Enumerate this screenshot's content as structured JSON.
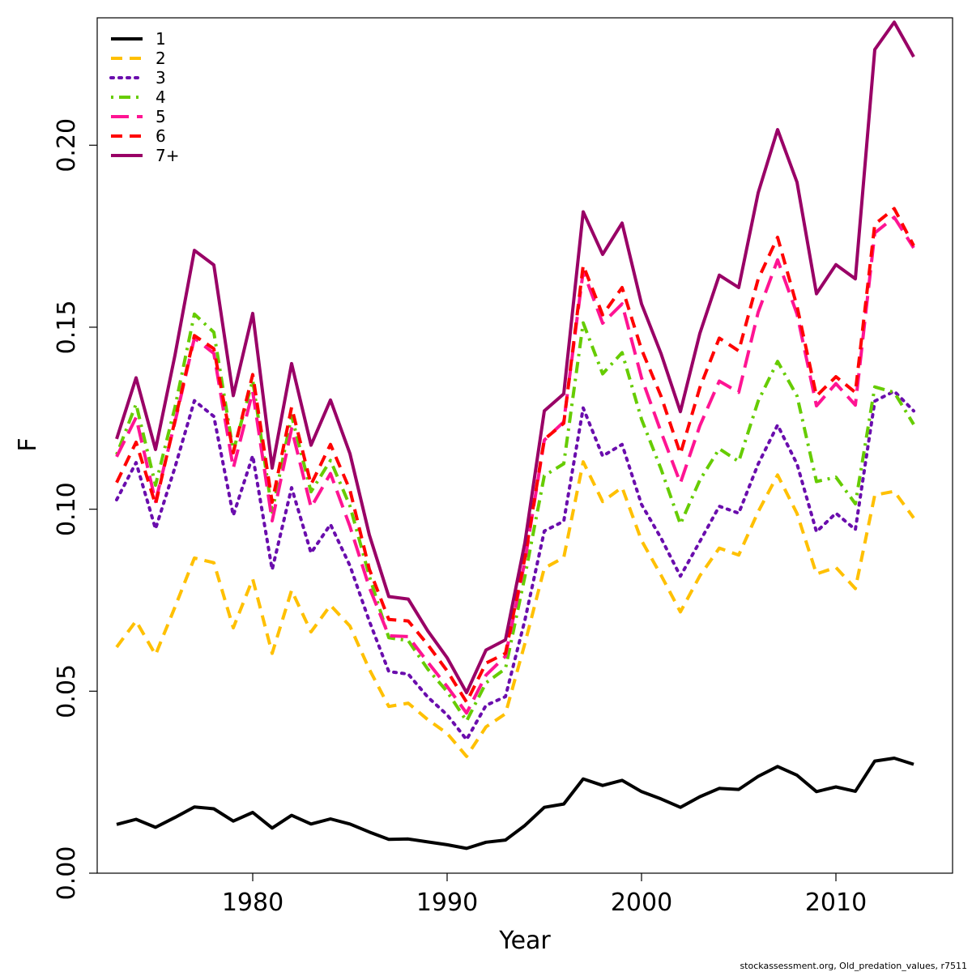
{
  "chart_data": {
    "type": "line",
    "xlabel": "Year",
    "ylabel": "F",
    "xlim": [
      1972,
      2016
    ],
    "ylim": [
      0.0,
      0.235
    ],
    "x_ticks": [
      1980,
      1990,
      2000,
      2010
    ],
    "y_ticks": [
      "0.00",
      "0.05",
      "0.10",
      "0.15",
      "0.20"
    ],
    "legend_position": "top-left",
    "grid": false,
    "footer": "stockassessment.org, Old_predation_values, r7511",
    "x": [
      1973,
      1974,
      1975,
      1976,
      1977,
      1978,
      1979,
      1980,
      1981,
      1982,
      1983,
      1984,
      1985,
      1986,
      1987,
      1988,
      1989,
      1990,
      1991,
      1992,
      1993,
      1994,
      1995,
      1996,
      1997,
      1998,
      1999,
      2000,
      2001,
      2002,
      2003,
      2004,
      2005,
      2006,
      2007,
      2008,
      2009,
      2010,
      2011,
      2012,
      2013,
      2014
    ],
    "series": [
      {
        "name": "1",
        "color": "#000000",
        "dash": "solid",
        "values": [
          0.0134,
          0.0148,
          0.0126,
          0.0153,
          0.0182,
          0.0177,
          0.0143,
          0.0167,
          0.0124,
          0.0159,
          0.0135,
          0.0149,
          0.0135,
          0.0113,
          0.0093,
          0.0094,
          0.0086,
          0.0078,
          0.0068,
          0.0085,
          0.0091,
          0.0131,
          0.0181,
          0.019,
          0.0259,
          0.0241,
          0.0255,
          0.0224,
          0.0204,
          0.0181,
          0.021,
          0.0233,
          0.023,
          0.0266,
          0.0293,
          0.0269,
          0.0224,
          0.0237,
          0.0225,
          0.0308,
          0.0316,
          0.0299
        ]
      },
      {
        "name": "2",
        "color": "#FFC000",
        "dash": "dashed",
        "values": [
          0.0621,
          0.0693,
          0.06,
          0.0731,
          0.0866,
          0.0853,
          0.0674,
          0.0808,
          0.0604,
          0.0777,
          0.0663,
          0.0736,
          0.0679,
          0.056,
          0.0458,
          0.0467,
          0.0422,
          0.0384,
          0.0321,
          0.0402,
          0.0438,
          0.0631,
          0.0838,
          0.0867,
          0.113,
          0.1021,
          0.106,
          0.0914,
          0.0819,
          0.0718,
          0.0817,
          0.0893,
          0.0874,
          0.0993,
          0.1094,
          0.0988,
          0.0822,
          0.084,
          0.0782,
          0.1039,
          0.1049,
          0.0976
        ]
      },
      {
        "name": "3",
        "color": "#6A0DAD",
        "dash": "dotted",
        "values": [
          0.1026,
          0.1128,
          0.0946,
          0.1115,
          0.1298,
          0.1255,
          0.0983,
          0.1147,
          0.0834,
          0.1059,
          0.088,
          0.0958,
          0.0845,
          0.0692,
          0.0554,
          0.0547,
          0.0484,
          0.0435,
          0.0367,
          0.0461,
          0.0485,
          0.0695,
          0.094,
          0.0967,
          0.1278,
          0.1146,
          0.1178,
          0.1013,
          0.0921,
          0.0816,
          0.0911,
          0.1008,
          0.0989,
          0.1124,
          0.1231,
          0.1124,
          0.0938,
          0.0989,
          0.0944,
          0.1297,
          0.1324,
          0.127
        ]
      },
      {
        "name": "4",
        "color": "#66CC00",
        "dash": "dashdot",
        "values": [
          0.115,
          0.1289,
          0.1066,
          0.128,
          0.1536,
          0.1486,
          0.1159,
          0.1354,
          0.0992,
          0.1257,
          0.1048,
          0.1134,
          0.1009,
          0.0816,
          0.0647,
          0.0639,
          0.0561,
          0.0499,
          0.0418,
          0.0523,
          0.0562,
          0.0815,
          0.1092,
          0.1125,
          0.1512,
          0.1372,
          0.143,
          0.1247,
          0.1111,
          0.0959,
          0.108,
          0.1166,
          0.1131,
          0.1297,
          0.1406,
          0.1311,
          0.1076,
          0.1088,
          0.1015,
          0.1336,
          0.1321,
          0.1233
        ]
      },
      {
        "name": "5",
        "color": "#FF1493",
        "dash": "longdash",
        "values": [
          0.1144,
          0.1252,
          0.1021,
          0.1239,
          0.147,
          0.1428,
          0.1113,
          0.1323,
          0.0968,
          0.1221,
          0.1005,
          0.1098,
          0.0953,
          0.0785,
          0.0652,
          0.065,
          0.058,
          0.0513,
          0.044,
          0.0544,
          0.0596,
          0.0857,
          0.119,
          0.124,
          0.1654,
          0.1511,
          0.1564,
          0.1361,
          0.1213,
          0.1072,
          0.1229,
          0.1352,
          0.1321,
          0.1541,
          0.1685,
          0.1536,
          0.1284,
          0.1345,
          0.1286,
          0.1759,
          0.1802,
          0.1718
        ]
      },
      {
        "name": "6",
        "color": "#FF0000",
        "dash": "dashed",
        "values": [
          0.1073,
          0.1184,
          0.1013,
          0.1244,
          0.1477,
          0.1441,
          0.1155,
          0.137,
          0.1019,
          0.128,
          0.1068,
          0.1178,
          0.1053,
          0.0835,
          0.0697,
          0.0693,
          0.0628,
          0.0556,
          0.047,
          0.0577,
          0.0604,
          0.0866,
          0.1192,
          0.1236,
          0.167,
          0.1534,
          0.1609,
          0.1439,
          0.1311,
          0.1152,
          0.1334,
          0.147,
          0.1435,
          0.1632,
          0.1747,
          0.1557,
          0.1311,
          0.1364,
          0.1321,
          0.1783,
          0.1826,
          0.1724
        ]
      },
      {
        "name": "7+",
        "color": "#990066",
        "dash": "solid",
        "values": [
          0.1193,
          0.1361,
          0.1164,
          0.1423,
          0.1711,
          0.1671,
          0.1312,
          0.1538,
          0.1113,
          0.14,
          0.1176,
          0.13,
          0.1153,
          0.0929,
          0.076,
          0.0753,
          0.0666,
          0.0592,
          0.0496,
          0.0613,
          0.0641,
          0.0908,
          0.127,
          0.1317,
          0.1817,
          0.17,
          0.1786,
          0.1564,
          0.1428,
          0.1268,
          0.1483,
          0.1643,
          0.1609,
          0.1869,
          0.2043,
          0.1898,
          0.1592,
          0.1672,
          0.1633,
          0.2263,
          0.2338,
          0.2243
        ]
      }
    ]
  }
}
